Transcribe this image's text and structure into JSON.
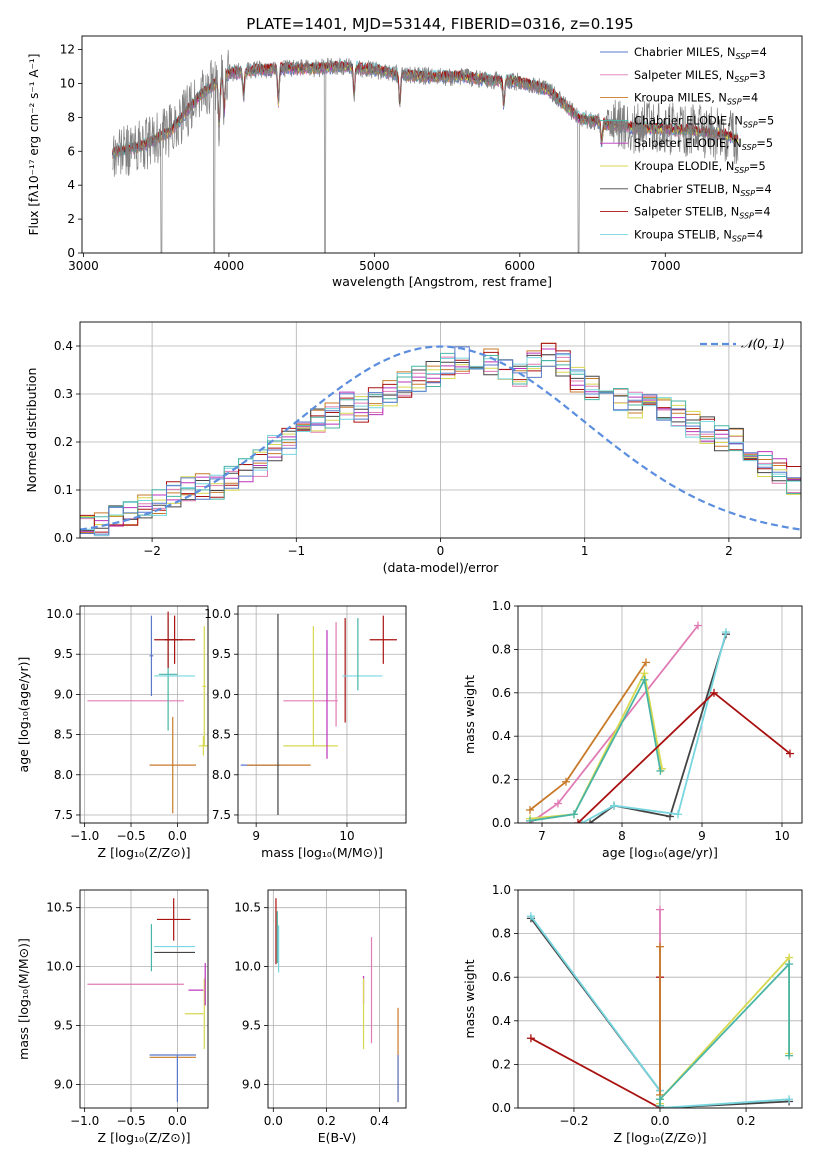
{
  "figure_title": "PLATE=1401, MJD=53144, FIBERID=0316, z=0.195",
  "colors": {
    "series": [
      "#5a79c9",
      "#e07bb4",
      "#c87a2a",
      "#48b5a5",
      "#bb33bb",
      "#d8d850",
      "#444444",
      "#aa1111",
      "#77d6df"
    ],
    "data": "#808080",
    "normal": "#5b8ede"
  },
  "chart_data": [
    {
      "id": "spectrum",
      "type": "line",
      "title": "PLATE=1401, MJD=53144, FIBERID=0316, z=0.195",
      "xlabel": "wavelength [Angstrom, rest frame]",
      "ylabel": "Flux [fλ10⁻¹⁷ erg cm⁻² s⁻¹ A⁻¹]",
      "xlim": [
        2990,
        7940
      ],
      "ylim": [
        0,
        12.8
      ],
      "xticks": [
        "3000",
        "4000",
        "5000",
        "6000",
        "7000"
      ],
      "yticks": [
        "0",
        "2",
        "4",
        "6",
        "8",
        "10",
        "12"
      ],
      "legend_position": "top-right",
      "legend": [
        {
          "pre": "Chabrier MILES, N",
          "sub": "SSP",
          "post": "=4"
        },
        {
          "pre": "Salpeter MILES, N",
          "sub": "SSP",
          "post": "=3"
        },
        {
          "pre": "Kroupa MILES, N",
          "sub": "SSP",
          "post": "=4"
        },
        {
          "pre": "Chabrier ELODIE, N",
          "sub": "SSP",
          "post": "=5"
        },
        {
          "pre": "Salpeter ELODIE, N",
          "sub": "SSP",
          "post": "=5"
        },
        {
          "pre": "Kroupa ELODIE, N",
          "sub": "SSP",
          "post": "=5"
        },
        {
          "pre": "Chabrier STELIB, N",
          "sub": "SSP",
          "post": "=4"
        },
        {
          "pre": "Salpeter STELIB, N",
          "sub": "SSP",
          "post": "=4"
        },
        {
          "pre": "Kroupa STELIB, N",
          "sub": "SSP",
          "post": "=4"
        }
      ],
      "continuum_x": [
        3200,
        3400,
        3600,
        3800,
        4000,
        4200,
        4400,
        4600,
        4800,
        5000,
        5200,
        5400,
        5600,
        5800,
        6000,
        6200,
        6400,
        6600,
        6800,
        7000,
        7200,
        7400,
        7500
      ],
      "continuum_y": [
        5.9,
        6.3,
        7.2,
        9.3,
        10.6,
        10.8,
        10.9,
        10.9,
        11.0,
        10.8,
        10.5,
        10.4,
        10.4,
        10.2,
        10.1,
        9.6,
        8.0,
        7.6,
        7.4,
        7.3,
        7.2,
        7.0,
        6.7
      ]
    },
    {
      "id": "residuals",
      "type": "line",
      "xlabel": "(data-model)/error",
      "ylabel": "Normed distribution",
      "xlim": [
        -2.5,
        2.5
      ],
      "ylim": [
        0,
        0.45
      ],
      "xticks": [
        "−2",
        "−1",
        "0",
        "1",
        "2"
      ],
      "yticks": [
        "0.0",
        "0.1",
        "0.2",
        "0.3",
        "0.4"
      ],
      "legend": "𝒩(0, 1)",
      "grid": true,
      "bin_width": 0.1,
      "base": [
        0.025,
        0.03,
        0.04,
        0.055,
        0.06,
        0.075,
        0.09,
        0.1,
        0.105,
        0.11,
        0.125,
        0.145,
        0.155,
        0.185,
        0.2,
        0.22,
        0.245,
        0.255,
        0.275,
        0.27,
        0.285,
        0.3,
        0.32,
        0.33,
        0.345,
        0.36,
        0.37,
        0.375,
        0.37,
        0.35,
        0.34,
        0.36,
        0.38,
        0.36,
        0.33,
        0.315,
        0.3,
        0.295,
        0.28,
        0.275,
        0.27,
        0.26,
        0.24,
        0.225,
        0.21,
        0.2,
        0.18,
        0.155,
        0.14,
        0.12,
        0.105,
        0.1,
        0.09,
        0.075,
        0.065,
        0.06,
        0.05,
        0.045,
        0.04,
        0.035
      ]
    },
    {
      "id": "age-vs-Z",
      "type": "scatter",
      "xlabel": "Z [log₁₀(Z/Z⊙)]",
      "ylabel": "age  [log₁₀(age/yr)]",
      "xlim": [
        -1.05,
        0.33
      ],
      "ylim": [
        7.4,
        10.1
      ],
      "xticks": [
        "−1.0",
        "−0.5",
        "0.0"
      ],
      "yticks": [
        "7.5",
        "8.0",
        "8.5",
        "9.0",
        "9.5",
        "10.0"
      ],
      "xtick_values": [
        -1.0,
        -0.5,
        0.0
      ],
      "ytick_values": [
        7.5,
        8.0,
        8.5,
        9.0,
        9.5,
        10.0
      ],
      "points": [
        {
          "s": 1,
          "x": -0.45,
          "xerr": 0.52,
          "y": 8.92,
          "yerr": 0
        },
        {
          "s": 2,
          "x": -0.05,
          "xerr": 0.25,
          "y": 8.12,
          "yerr": 0.6
        },
        {
          "s": 3,
          "x": -0.1,
          "xerr": 0.1,
          "y": 9.25,
          "yerr": 0.7
        },
        {
          "s": 8,
          "x": -0.03,
          "xerr": 0.22,
          "y": 9.23,
          "yerr": 0
        },
        {
          "s": 6,
          "x": -0.04,
          "xerr": 0.1,
          "y": 9.68,
          "yerr": 0
        },
        {
          "s": 7,
          "x": -0.03,
          "xerr": 0.22,
          "y": 9.68,
          "yerr": 0.3
        },
        {
          "s": 5,
          "x": 0.28,
          "xerr": 0.05,
          "y": 8.36,
          "yerr": 0.12
        },
        {
          "s": 5,
          "x": 0.29,
          "xerr": 0.02,
          "y": 9.1,
          "yerr": 0.75
        },
        {
          "s": 0,
          "x": -0.28,
          "xerr": 0.02,
          "y": 9.48,
          "yerr": 0.5
        },
        {
          "s": 7,
          "x": -0.1,
          "xerr": 0.02,
          "y": 9.68,
          "yerr": 0.35
        }
      ]
    },
    {
      "id": "age-vs-mass",
      "type": "scatter",
      "xlabel": "mass [log₁₀(M/M⊙)]",
      "ylabel": "",
      "xlim": [
        8.8,
        10.65
      ],
      "ylim": [
        7.4,
        10.1
      ],
      "xticks": [
        "9",
        "10"
      ],
      "yticks": [
        "7.5",
        "8.0",
        "8.5",
        "9.0",
        "9.5",
        "10.0"
      ],
      "xtick_values": [
        9,
        10
      ],
      "ytick_values": [
        7.5,
        8.0,
        8.5,
        9.0,
        9.5,
        10.0
      ],
      "points": [
        {
          "s": 0,
          "x": 9.05,
          "xerr": 0.22,
          "y": 8.12,
          "yerr": 0
        },
        {
          "s": 2,
          "x": 9.25,
          "xerr": 0.35,
          "y": 8.12,
          "yerr": 0
        },
        {
          "s": 6,
          "x": 9.24,
          "xerr": 0,
          "y": 8.75,
          "yerr": 1.25
        },
        {
          "s": 1,
          "x": 9.6,
          "xerr": 0.3,
          "y": 8.92,
          "yerr": 0
        },
        {
          "s": 5,
          "x": 9.6,
          "xerr": 0.3,
          "y": 8.36,
          "yerr": 0
        },
        {
          "s": 5,
          "x": 9.63,
          "xerr": 0,
          "y": 9.1,
          "yerr": 0.75
        },
        {
          "s": 4,
          "x": 9.78,
          "xerr": 0,
          "y": 9.0,
          "yerr": 0.8
        },
        {
          "s": 1,
          "x": 9.88,
          "xerr": 0,
          "y": 9.25,
          "yerr": 0.65
        },
        {
          "s": 7,
          "x": 9.98,
          "xerr": 0,
          "y": 9.3,
          "yerr": 0.65
        },
        {
          "s": 8,
          "x": 10.17,
          "xerr": 0.22,
          "y": 9.23,
          "yerr": 0
        },
        {
          "s": 3,
          "x": 10.12,
          "xerr": 0,
          "y": 9.5,
          "yerr": 0.45
        },
        {
          "s": 7,
          "x": 10.4,
          "xerr": 0.15,
          "y": 9.68,
          "yerr": 0.3
        }
      ]
    },
    {
      "id": "weight-vs-age",
      "type": "line",
      "xlabel": "age  [log₁₀(age/yr)]",
      "ylabel": "mass weight",
      "xlim": [
        6.7,
        10.25
      ],
      "ylim": [
        0,
        1.0
      ],
      "xticks": [
        "7",
        "8",
        "9",
        "10"
      ],
      "yticks": [
        "0.0",
        "0.2",
        "0.4",
        "0.6",
        "0.8",
        "1.0"
      ],
      "xtick_values": [
        7,
        8,
        9,
        10
      ],
      "ytick_values": [
        0,
        0.2,
        0.4,
        0.6,
        0.8,
        1.0
      ],
      "series": [
        {
          "s": 1,
          "x": [
            6.85,
            7.2,
            8.95
          ],
          "y": [
            0.0,
            0.09,
            0.91
          ]
        },
        {
          "s": 2,
          "x": [
            6.85,
            7.3,
            8.3
          ],
          "y": [
            0.06,
            0.19,
            0.74
          ]
        },
        {
          "s": 5,
          "x": [
            6.85,
            7.4,
            8.28,
            8.5
          ],
          "y": [
            0.02,
            0.04,
            0.69,
            0.25
          ]
        },
        {
          "s": 3,
          "x": [
            6.85,
            7.4,
            8.28,
            8.48
          ],
          "y": [
            0.01,
            0.04,
            0.66,
            0.24
          ]
        },
        {
          "s": 6,
          "x": [
            7.6,
            7.9,
            8.6,
            9.3
          ],
          "y": [
            0.0,
            0.08,
            0.03,
            0.87
          ]
        },
        {
          "s": 8,
          "x": [
            7.5,
            7.9,
            8.7,
            9.3
          ],
          "y": [
            0.0,
            0.08,
            0.04,
            0.88
          ]
        },
        {
          "s": 7,
          "x": [
            7.45,
            9.15,
            10.1
          ],
          "y": [
            0.0,
            0.6,
            0.32
          ]
        }
      ]
    },
    {
      "id": "mass-vs-Z",
      "type": "scatter",
      "xlabel": "Z [log₁₀(Z/Z⊙)]",
      "ylabel": "mass [log₁₀(M/M⊙)]",
      "xlim": [
        -1.05,
        0.33
      ],
      "ylim": [
        8.8,
        10.65
      ],
      "xticks": [
        "−1.0",
        "−0.5",
        "0.0"
      ],
      "yticks": [
        "9.0",
        "9.5",
        "10.0",
        "10.5"
      ],
      "xtick_values": [
        -1.0,
        -0.5,
        0.0
      ],
      "ytick_values": [
        9.0,
        9.5,
        10.0,
        10.5
      ],
      "points": [
        {
          "s": 1,
          "x": -0.45,
          "xerr": 0.52,
          "y": 9.85,
          "yerr": 0
        },
        {
          "s": 0,
          "x": -0.05,
          "xerr": 0.25,
          "y": 9.25,
          "yerr": 0
        },
        {
          "s": 2,
          "x": -0.05,
          "xerr": 0.25,
          "y": 9.23,
          "yerr": 0
        },
        {
          "s": 0,
          "x": 0.0,
          "xerr": 0,
          "y": 9.05,
          "yerr": 0.2
        },
        {
          "s": 8,
          "x": -0.03,
          "xerr": 0.22,
          "y": 10.17,
          "yerr": 0
        },
        {
          "s": 6,
          "x": -0.03,
          "xerr": 0.22,
          "y": 10.12,
          "yerr": 0
        },
        {
          "s": 7,
          "x": -0.04,
          "xerr": 0.18,
          "y": 10.4,
          "yerr": 0.18
        },
        {
          "s": 3,
          "x": -0.28,
          "xerr": 0,
          "y": 10.16,
          "yerr": 0.2
        },
        {
          "s": 5,
          "x": 0.18,
          "xerr": 0.1,
          "y": 9.6,
          "yerr": 0
        },
        {
          "s": 4,
          "x": 0.2,
          "xerr": 0.08,
          "y": 9.8,
          "yerr": 0
        },
        {
          "s": 5,
          "x": 0.29,
          "xerr": 0,
          "y": 9.6,
          "yerr": 0.3
        },
        {
          "s": 4,
          "x": 0.3,
          "xerr": 0,
          "y": 9.85,
          "yerr": 0.18
        }
      ]
    },
    {
      "id": "mass-vs-ebv",
      "type": "scatter",
      "xlabel": "E(B-V)",
      "ylabel": "",
      "xlim": [
        -0.02,
        0.5
      ],
      "ylim": [
        8.8,
        10.65
      ],
      "xticks": [
        "0.0",
        "0.2",
        "0.4"
      ],
      "yticks": [
        "9.0",
        "9.5",
        "10.0",
        "10.5"
      ],
      "xtick_values": [
        0.0,
        0.2,
        0.4
      ],
      "ytick_values": [
        9.0,
        9.5,
        10.0,
        10.5
      ],
      "points": [
        {
          "s": 7,
          "x": 0.01,
          "xerr": 0,
          "y": 10.3,
          "yerr": 0.28
        },
        {
          "s": 3,
          "x": 0.015,
          "xerr": 0,
          "y": 10.25,
          "yerr": 0.22
        },
        {
          "s": 8,
          "x": 0.02,
          "xerr": 0,
          "y": 10.15,
          "yerr": 0.2
        },
        {
          "s": 4,
          "x": 0.34,
          "xerr": 0,
          "y": 9.8,
          "yerr": 0.12
        },
        {
          "s": 5,
          "x": 0.34,
          "xerr": 0,
          "y": 9.6,
          "yerr": 0.3
        },
        {
          "s": 1,
          "x": 0.37,
          "xerr": 0,
          "y": 9.8,
          "yerr": 0.45
        },
        {
          "s": 2,
          "x": 0.47,
          "xerr": 0,
          "y": 9.25,
          "yerr": 0.4
        },
        {
          "s": 0,
          "x": 0.47,
          "xerr": 0,
          "y": 9.05,
          "yerr": 0.2
        }
      ]
    },
    {
      "id": "weight-vs-Z",
      "type": "line",
      "xlabel": "Z [log₁₀(Z/Z⊙)]",
      "ylabel": "mass weight",
      "xlim": [
        -0.33,
        0.33
      ],
      "ylim": [
        0,
        1.0
      ],
      "xticks": [
        "−0.2",
        "0.0",
        "0.2"
      ],
      "yticks": [
        "0.0",
        "0.2",
        "0.4",
        "0.6",
        "0.8",
        "1.0"
      ],
      "xtick_values": [
        -0.2,
        0.0,
        0.2
      ],
      "ytick_values": [
        0,
        0.2,
        0.4,
        0.6,
        0.8,
        1.0
      ],
      "series": [
        {
          "s": 6,
          "x": [
            -0.3,
            0.0,
            0.0,
            0.3
          ],
          "y": [
            0.87,
            0.08,
            0.0,
            0.03
          ]
        },
        {
          "s": 8,
          "x": [
            -0.3,
            0.0,
            0.0,
            0.3
          ],
          "y": [
            0.88,
            0.08,
            0.0,
            0.04
          ]
        },
        {
          "s": 7,
          "x": [
            -0.3,
            0.0,
            0.0
          ],
          "y": [
            0.32,
            0.0,
            0.6
          ]
        },
        {
          "s": 1,
          "x": [
            0.0,
            0.0
          ],
          "y": [
            0.0,
            0.91
          ]
        },
        {
          "s": 2,
          "x": [
            0.0,
            0.0
          ],
          "y": [
            0.06,
            0.74
          ]
        },
        {
          "s": 5,
          "x": [
            0.0,
            0.0,
            0.3,
            0.3
          ],
          "y": [
            0.02,
            0.04,
            0.69,
            0.25
          ]
        },
        {
          "s": 3,
          "x": [
            0.0,
            0.0,
            0.3,
            0.3
          ],
          "y": [
            0.01,
            0.04,
            0.66,
            0.24
          ]
        }
      ]
    }
  ]
}
